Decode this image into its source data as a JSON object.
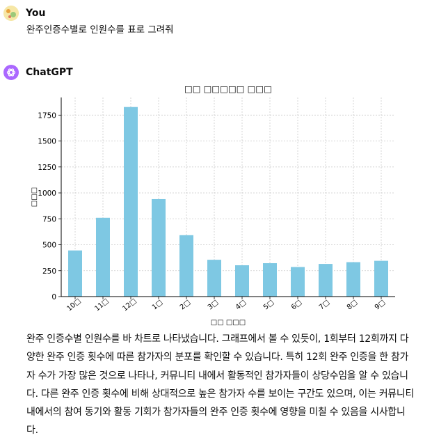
{
  "user": {
    "name": "You",
    "message": "완주인증수별로 인원수를 표로 그려줘"
  },
  "assistant": {
    "name": "ChatGPT",
    "response": "완주 인증수별 인원수를 바 차트로 나타냈습니다. 그래프에서 볼 수 있듯이, 1회부터 12회까지 다양한 완주 인증 횟수에 따른 참가자의 분포를 확인할 수 있습니다. 특히 12회 완주 인증을 한 참가자 수가 가장 많은 것으로 나타나, 커뮤니티 내에서 활동적인 참가자들이 상당수임을 알 수 있습니다. 다른 완주 인증 횟수에 비해 상대적으로 높은 참가자 수를 보이는 구간도 있으며, 이는 커뮤니티 내에서의 참여 동기와 활동 기회가 참가자들의 완주 인증 횟수에 영향을 미칠 수 있음을 시사합니다."
  },
  "colors": {
    "bar": "#7ec8e3",
    "gpt_avatar": "#ab68ff",
    "grid": "#cccccc"
  },
  "chart_data": {
    "type": "bar",
    "title": "□□ □□□□□ □□□",
    "xlabel": "□□ □□□",
    "ylabel": "□□□",
    "categories": [
      "10□",
      "11□",
      "12□",
      "1□",
      "2□",
      "3□",
      "4□",
      "5□",
      "6□",
      "7□",
      "8□",
      "9□"
    ],
    "values": [
      445,
      760,
      1828,
      940,
      592,
      355,
      302,
      322,
      285,
      315,
      332,
      345
    ],
    "ylim": [
      0,
      1920
    ],
    "yticks": [
      0,
      250,
      500,
      750,
      1000,
      1250,
      1500,
      1750
    ],
    "grid": true
  }
}
